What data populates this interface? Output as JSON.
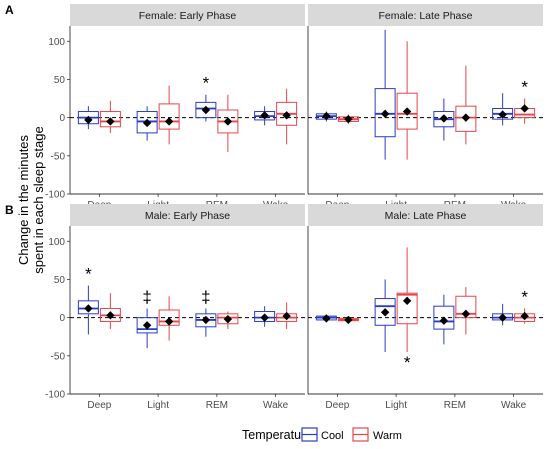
{
  "legend": {
    "title": "Temperature",
    "items": [
      {
        "label": "Cool",
        "color": "#2b3cc8"
      },
      {
        "label": "Warm",
        "color": "#e8454a"
      }
    ]
  },
  "chart_data": {
    "type": "box",
    "ylabel_line1": "Change in the minutes",
    "ylabel_line2": "spent in each sleep stage",
    "categories": [
      "Deep",
      "Light",
      "REM",
      "Wake"
    ],
    "ylim": [
      -100,
      120
    ],
    "yticks": [
      -100,
      -50,
      0,
      50,
      100
    ],
    "reference_line": 0,
    "rows": [
      {
        "tag": "A",
        "panels": [
          {
            "title": "Female: Early Phase",
            "groups": [
              {
                "category": "Deep",
                "cool": {
                  "min": -15,
                  "q1": -8,
                  "median": 0,
                  "q3": 8,
                  "max": 15,
                  "mean": -3
                },
                "warm": {
                  "min": -20,
                  "q1": -12,
                  "median": -5,
                  "q3": 8,
                  "max": 22,
                  "mean": -5
                }
              },
              {
                "category": "Light",
                "cool": {
                  "min": -30,
                  "q1": -20,
                  "median": -5,
                  "q3": 8,
                  "max": 15,
                  "mean": -7
                },
                "warm": {
                  "min": -35,
                  "q1": -15,
                  "median": -5,
                  "q3": 18,
                  "max": 42,
                  "mean": -5
                }
              },
              {
                "category": "REM",
                "cool": {
                  "min": -5,
                  "q1": 0,
                  "median": 12,
                  "q3": 20,
                  "max": 30,
                  "mean": 10,
                  "sig": "*"
                },
                "warm": {
                  "min": -45,
                  "q1": -20,
                  "median": -5,
                  "q3": 10,
                  "max": 30,
                  "mean": -5
                }
              },
              {
                "category": "Wake",
                "cool": {
                  "min": -10,
                  "q1": -3,
                  "median": 2,
                  "q3": 8,
                  "max": 15,
                  "mean": 3
                },
                "warm": {
                  "min": -35,
                  "q1": -10,
                  "median": 5,
                  "q3": 20,
                  "max": 38,
                  "mean": 3
                }
              }
            ]
          },
          {
            "title": "Female: Late Phase",
            "groups": [
              {
                "category": "Deep",
                "cool": {
                  "min": -5,
                  "q1": -2,
                  "median": 2,
                  "q3": 5,
                  "max": 8,
                  "mean": 2
                },
                "warm": {
                  "min": -8,
                  "q1": -5,
                  "median": -2,
                  "q3": 1,
                  "max": 4,
                  "mean": -2
                }
              },
              {
                "category": "Light",
                "cool": {
                  "min": -55,
                  "q1": -25,
                  "median": 5,
                  "q3": 38,
                  "max": 115,
                  "mean": 5
                },
                "warm": {
                  "min": -55,
                  "q1": -15,
                  "median": 5,
                  "q3": 32,
                  "max": 100,
                  "mean": 8
                }
              },
              {
                "category": "REM",
                "cool": {
                  "min": -30,
                  "q1": -12,
                  "median": -2,
                  "q3": 8,
                  "max": 25,
                  "mean": -1
                },
                "warm": {
                  "min": -35,
                  "q1": -18,
                  "median": 0,
                  "q3": 15,
                  "max": 68,
                  "mean": 0
                }
              },
              {
                "category": "Wake",
                "cool": {
                  "min": -10,
                  "q1": -2,
                  "median": 5,
                  "q3": 12,
                  "max": 32,
                  "mean": 4
                },
                "warm": {
                  "min": -8,
                  "q1": 0,
                  "median": 4,
                  "q3": 12,
                  "max": 25,
                  "mean": 12,
                  "sig": "*"
                }
              }
            ]
          }
        ]
      },
      {
        "tag": "B",
        "panels": [
          {
            "title": "Male: Early Phase",
            "groups": [
              {
                "category": "Deep",
                "cool": {
                  "min": -22,
                  "q1": 5,
                  "median": 12,
                  "q3": 22,
                  "max": 42,
                  "mean": 12,
                  "sig": "*"
                },
                "warm": {
                  "min": -15,
                  "q1": -5,
                  "median": 3,
                  "q3": 12,
                  "max": 32,
                  "mean": 3
                }
              },
              {
                "category": "Light",
                "cool": {
                  "min": -40,
                  "q1": -20,
                  "median": -15,
                  "q3": 0,
                  "max": 12,
                  "mean": -10,
                  "sig": "‡"
                },
                "warm": {
                  "min": -30,
                  "q1": -10,
                  "median": -5,
                  "q3": 10,
                  "max": 28,
                  "mean": -5
                }
              },
              {
                "category": "REM",
                "cool": {
                  "min": -25,
                  "q1": -12,
                  "median": -3,
                  "q3": 5,
                  "max": 12,
                  "mean": -3,
                  "sig": "‡"
                },
                "warm": {
                  "min": -15,
                  "q1": -8,
                  "median": 0,
                  "q3": 5,
                  "max": 8,
                  "mean": -2
                }
              },
              {
                "category": "Wake",
                "cool": {
                  "min": -12,
                  "q1": -5,
                  "median": 0,
                  "q3": 8,
                  "max": 15,
                  "mean": 0
                },
                "warm": {
                  "min": -15,
                  "q1": -5,
                  "median": 0,
                  "q3": 5,
                  "max": 20,
                  "mean": 2
                }
              }
            ]
          },
          {
            "title": "Male: Late Phase",
            "groups": [
              {
                "category": "Deep",
                "cool": {
                  "min": -6,
                  "q1": -3,
                  "median": 0,
                  "q3": 2,
                  "max": 4,
                  "mean": -1
                },
                "warm": {
                  "min": -6,
                  "q1": -4,
                  "median": -3,
                  "q3": -1,
                  "max": 1,
                  "mean": -3
                }
              },
              {
                "category": "Light",
                "cool": {
                  "min": -45,
                  "q1": -10,
                  "median": 15,
                  "q3": 25,
                  "max": 50,
                  "mean": 7
                },
                "warm": {
                  "min": -45,
                  "q1": -8,
                  "median": 30,
                  "q3": 32,
                  "max": 92,
                  "mean": 22,
                  "sig_below": "*"
                }
              },
              {
                "category": "REM",
                "cool": {
                  "min": -35,
                  "q1": -15,
                  "median": -5,
                  "q3": 15,
                  "max": 30,
                  "mean": -4
                },
                "warm": {
                  "min": -22,
                  "q1": 0,
                  "median": 5,
                  "q3": 28,
                  "max": 40,
                  "mean": 5
                }
              },
              {
                "category": "Wake",
                "cool": {
                  "min": -10,
                  "q1": -3,
                  "median": 0,
                  "q3": 5,
                  "max": 18,
                  "mean": 0
                },
                "warm": {
                  "min": -8,
                  "q1": -5,
                  "median": 0,
                  "q3": 5,
                  "max": 12,
                  "mean": 2,
                  "sig": "*"
                }
              }
            ]
          }
        ]
      }
    ]
  }
}
